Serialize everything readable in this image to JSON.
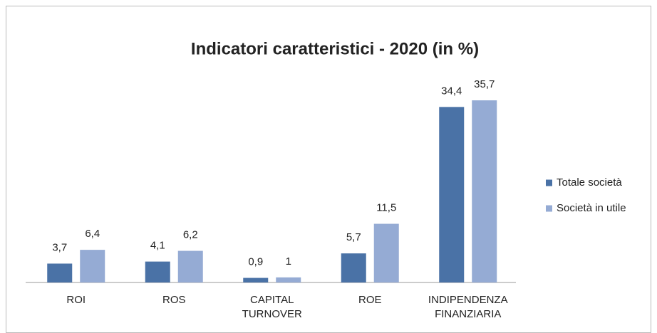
{
  "chart_data": {
    "type": "bar",
    "title": "Indicatori caratteristici - 2020 (in %)",
    "categories": [
      "ROI",
      "ROS",
      "CAPITAL TURNOVER",
      "ROE",
      "INDIPENDENZA FINANZIARIA"
    ],
    "series": [
      {
        "name": "Totale società",
        "color": "#4a72a6",
        "values": [
          3.7,
          4.1,
          0.9,
          5.7,
          34.4
        ],
        "value_labels": [
          "3,7",
          "4,1",
          "0,9",
          "5,7",
          "34,4"
        ]
      },
      {
        "name": "Società in utile",
        "color": "#95abd4",
        "values": [
          6.4,
          6.2,
          1,
          11.5,
          35.7
        ],
        "value_labels": [
          "6,4",
          "6,2",
          "1",
          "11,5",
          "35,7"
        ]
      }
    ],
    "legend": "right"
  }
}
